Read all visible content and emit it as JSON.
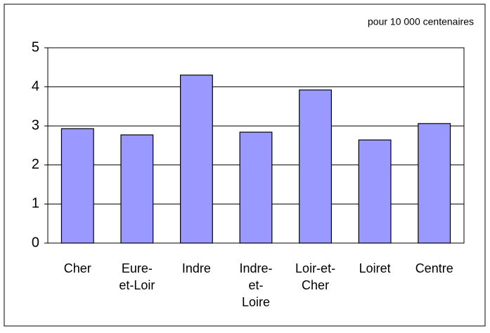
{
  "chart_data": {
    "type": "bar",
    "annotation": "pour 10 000 centenaires",
    "categories": [
      "Cher",
      "Eure-et-Loir",
      "Indre",
      "Indre-et-Loire",
      "Loir-et-Cher",
      "Loiret",
      "Centre"
    ],
    "values": [
      2.93,
      2.77,
      4.3,
      2.84,
      3.92,
      2.64,
      3.06
    ],
    "color": "#9999ff",
    "ylim": [
      0,
      5
    ],
    "yticks": [
      0,
      1,
      2,
      3,
      4,
      5
    ],
    "grid": true
  }
}
